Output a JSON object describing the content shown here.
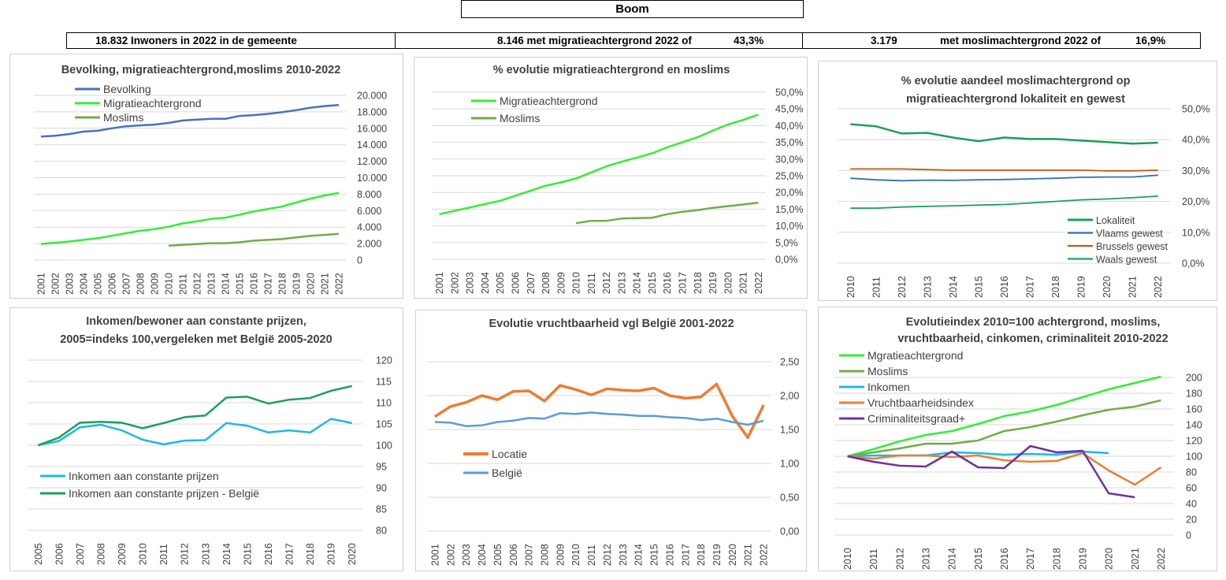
{
  "header": {
    "title": "Boom",
    "stat1": "18.832 Inwoners in 2022 in de gemeente",
    "stat2_value": "8.146 met migratieachtergrond 2022 of",
    "stat2_pct": "43,3%",
    "stat3_value": "3.179",
    "stat3_label": "met moslimachtergrond 2022 of",
    "stat3_pct": "16,9%"
  },
  "chart_data": [
    {
      "type": "line",
      "title": [
        "Bevolking, migratieachtergrond,moslims 2010-2022"
      ],
      "categories": [
        "2001",
        "2002",
        "2003",
        "2004",
        "2005",
        "2006",
        "2007",
        "2008",
        "2009",
        "2010",
        "2011",
        "2012",
        "2013",
        "2014",
        "2015",
        "2016",
        "2017",
        "2018",
        "2019",
        "2020",
        "2021",
        "2022"
      ],
      "yticks": [
        "0",
        "2.000",
        "4.000",
        "6.000",
        "8.000",
        "10.000",
        "12.000",
        "14.000",
        "16.000",
        "18.000",
        "20.000"
      ],
      "ylim": [
        0,
        20000
      ],
      "legend_position": "top-left",
      "series": [
        {
          "name": "Bevolking",
          "color": "#4472C4",
          "values": [
            15000,
            15100,
            15300,
            15600,
            15700,
            16000,
            16250,
            16350,
            16450,
            16650,
            16950,
            17050,
            17150,
            17150,
            17500,
            17600,
            17750,
            17950,
            18200,
            18500,
            18700,
            18832
          ]
        },
        {
          "name": "Migratieachtergrond",
          "color": "#33EE33",
          "values": [
            1950,
            2100,
            2250,
            2450,
            2650,
            2950,
            3250,
            3550,
            3750,
            4050,
            4450,
            4700,
            5000,
            5150,
            5500,
            5900,
            6200,
            6500,
            7000,
            7450,
            7850,
            8146
          ]
        },
        {
          "name": "Moslims",
          "color": "#70AD47",
          "values": [
            null,
            null,
            null,
            null,
            null,
            null,
            null,
            null,
            null,
            1750,
            1850,
            1950,
            2050,
            2050,
            2150,
            2350,
            2450,
            2550,
            2750,
            2950,
            3050,
            3179
          ]
        }
      ]
    },
    {
      "type": "line",
      "title": [
        "% evolutie migratieachtergrond en moslims"
      ],
      "categories": [
        "2001",
        "2002",
        "2003",
        "2004",
        "2005",
        "2006",
        "2007",
        "2008",
        "2009",
        "2010",
        "2011",
        "2012",
        "2013",
        "2014",
        "2015",
        "2016",
        "2017",
        "2018",
        "2019",
        "2020",
        "2021",
        "2022"
      ],
      "yticks": [
        "0,0%",
        "5,0%",
        "10,0%",
        "15,0%",
        "20,0%",
        "25,0%",
        "30,0%",
        "35,0%",
        "40,0%",
        "45,0%",
        "50,0%"
      ],
      "ylim": [
        0,
        50
      ],
      "legend_position": "top-left",
      "series": [
        {
          "name": "Migratieachtergrond",
          "color": "#33EE33",
          "values": [
            13.5,
            14.5,
            15.5,
            16.5,
            17.5,
            19,
            20.5,
            22,
            23,
            24.2,
            26,
            27.8,
            29.2,
            30.4,
            31.7,
            33.5,
            35,
            36.5,
            38.5,
            40.3,
            41.7,
            43.3
          ]
        },
        {
          "name": "Moslims",
          "color": "#70AD47",
          "values": [
            null,
            null,
            null,
            null,
            null,
            null,
            null,
            null,
            null,
            10.8,
            11.5,
            11.5,
            12.2,
            12.3,
            12.4,
            13.5,
            14.2,
            14.7,
            15.4,
            15.9,
            16.4,
            16.9
          ]
        }
      ]
    },
    {
      "type": "line",
      "title": [
        "% evolutie aandeel moslimachtergrond op",
        "migratieachtergrond lokaliteit en gewest"
      ],
      "categories": [
        "2010",
        "2011",
        "2012",
        "2013",
        "2014",
        "2015",
        "2016",
        "2017",
        "2018",
        "2019",
        "2020",
        "2021",
        "2022"
      ],
      "yticks": [
        "0,0%",
        "10,0%",
        "20,0%",
        "30,0%",
        "40,0%",
        "50,0%"
      ],
      "ylim": [
        0,
        50
      ],
      "legend_position": "bottom-right",
      "series": [
        {
          "name": "Lokaliteit",
          "color": "#1CA05A",
          "values": [
            45,
            44.3,
            42,
            42.2,
            40.7,
            39.5,
            40.7,
            40.2,
            40.2,
            39.7,
            39.2,
            38.7,
            39
          ]
        },
        {
          "name": "Vlaams gewest",
          "color": "#2E74B5",
          "values": [
            27.5,
            27,
            26.7,
            26.9,
            26.8,
            27,
            27.1,
            27.3,
            27.5,
            27.8,
            27.9,
            27.9,
            28.5
          ]
        },
        {
          "name": "Brussels gewest",
          "color": "#C55A11",
          "values": [
            30.5,
            30.5,
            30.5,
            30.3,
            30.1,
            30.1,
            30.1,
            30.1,
            30.1,
            30.1,
            29.9,
            29.9,
            30.1
          ]
        },
        {
          "name": "Waals gewest",
          "color": "#1CA05A",
          "values": [
            17.8,
            17.8,
            18.2,
            18.4,
            18.6,
            18.8,
            19,
            19.5,
            20,
            20.5,
            20.8,
            21.2,
            21.7
          ]
        }
      ]
    },
    {
      "type": "line",
      "title": [
        "Inkomen/bewoner aan constante prijzen,",
        "2005=indeks 100,vergeleken met België 2005-2020"
      ],
      "categories": [
        "2005",
        "2006",
        "2007",
        "2008",
        "2009",
        "2010",
        "2011",
        "2012",
        "2013",
        "2014",
        "2015",
        "2016",
        "2017",
        "2018",
        "2019",
        "2020"
      ],
      "yticks": [
        "80",
        "85",
        "90",
        "95",
        "100",
        "105",
        "110",
        "115",
        "120"
      ],
      "ylim": [
        80,
        120
      ],
      "legend_position": "bottom-left",
      "series": [
        {
          "name": "Inkomen aan constante prijzen",
          "color": "#1EB8E8",
          "values": [
            100,
            101,
            104.2,
            104.8,
            103.5,
            101.3,
            100.2,
            101.1,
            101.2,
            105.2,
            104.6,
            103,
            103.5,
            103,
            106.2,
            105.2
          ]
        },
        {
          "name": "Inkomen aan constante prijzen - België",
          "color": "#1CA05A",
          "values": [
            100,
            101.8,
            105.3,
            105.5,
            105.3,
            104,
            105.2,
            106.6,
            107,
            111.2,
            111.4,
            109.8,
            110.7,
            111.1,
            112.8,
            113.9
          ]
        }
      ]
    },
    {
      "type": "line",
      "title": [
        "Evolutie vruchtbaarheid vgl België 2001-2022"
      ],
      "categories": [
        "2001",
        "2002",
        "2003",
        "2004",
        "2005",
        "2006",
        "2007",
        "2008",
        "2009",
        "2010",
        "2011",
        "2012",
        "2013",
        "2014",
        "2015",
        "2016",
        "2017",
        "2018",
        "2019",
        "2020",
        "2021",
        "2022"
      ],
      "yticks": [
        "0,00",
        "0,50",
        "1,00",
        "1,50",
        "2,00",
        "2,50"
      ],
      "ylim": [
        0,
        2.5
      ],
      "legend_position": "left",
      "series": [
        {
          "name": "Locatie",
          "color": "#ED7D31",
          "values": [
            1.69,
            1.84,
            1.9,
            2,
            1.94,
            2.06,
            2.07,
            1.92,
            2.15,
            2.09,
            2.01,
            2.1,
            2.08,
            2.07,
            2.11,
            2,
            1.96,
            1.98,
            2.17,
            1.7,
            1.38,
            1.86
          ]
        },
        {
          "name": "België",
          "color": "#5B9BD5",
          "values": [
            1.61,
            1.6,
            1.55,
            1.56,
            1.61,
            1.63,
            1.67,
            1.66,
            1.74,
            1.73,
            1.75,
            1.73,
            1.72,
            1.7,
            1.7,
            1.68,
            1.67,
            1.64,
            1.66,
            1.61,
            1.57,
            1.63
          ]
        }
      ]
    },
    {
      "type": "line",
      "title": [
        "Evolutieindex 2010=100 achtergrond, moslims,",
        "vruchtbaarheid, cinkomen, criminaliteit  2010-2022"
      ],
      "categories": [
        "2010",
        "2011",
        "2012",
        "2013",
        "2014",
        "2015",
        "2016",
        "2017",
        "2018",
        "2019",
        "2020",
        "2021",
        "2022"
      ],
      "yticks": [
        "0",
        "20",
        "40",
        "60",
        "80",
        "100",
        "120",
        "140",
        "160",
        "180",
        "200"
      ],
      "ylim": [
        0,
        200
      ],
      "legend_position": "top-left",
      "series": [
        {
          "name": "Mgratieachtergrond",
          "color": "#33EE33",
          "values": [
            100,
            109,
            119,
            127,
            132,
            141,
            151,
            157,
            165,
            175,
            185,
            193,
            201
          ]
        },
        {
          "name": "Moslims",
          "color": "#70AD47",
          "values": [
            100,
            105,
            110,
            116,
            116,
            120,
            132,
            137,
            144,
            152,
            159,
            163,
            171
          ]
        },
        {
          "name": "Inkomen",
          "color": "#1EB8E8",
          "values": [
            100,
            101,
            101,
            101,
            105,
            104,
            102,
            103,
            102,
            106,
            104,
            null,
            null
          ]
        },
        {
          "name": "Vruchtbaarheidsindex",
          "color": "#ED7D31",
          "values": [
            100,
            97,
            101,
            101,
            99,
            101,
            95,
            93,
            94,
            104,
            82,
            64,
            86
          ]
        },
        {
          "name": "Criminaliteitsgraad+",
          "color": "#7030A0",
          "values": [
            100,
            93,
            88,
            87,
            106,
            86,
            85,
            113,
            105,
            107,
            53,
            48,
            null
          ]
        }
      ]
    }
  ]
}
